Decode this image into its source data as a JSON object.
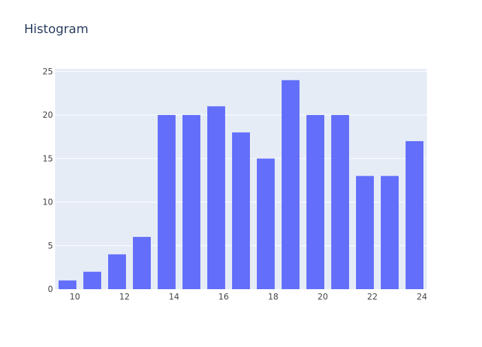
{
  "chart_data": {
    "type": "bar",
    "title": "Histogram",
    "xlabel": "",
    "ylabel": "",
    "xlim": [
      9.2,
      24.2
    ],
    "ylim": [
      0,
      25.3
    ],
    "x_ticks": [
      10,
      12,
      14,
      16,
      18,
      20,
      22,
      24
    ],
    "y_ticks": [
      0,
      5,
      10,
      15,
      20,
      25
    ],
    "bin_width": 1,
    "bar_gap": 0.28,
    "bins": [
      {
        "start": 9.2,
        "end": 10.2,
        "count": 1
      },
      {
        "start": 10.2,
        "end": 11.2,
        "count": 2
      },
      {
        "start": 11.2,
        "end": 12.2,
        "count": 4
      },
      {
        "start": 12.2,
        "end": 13.2,
        "count": 6
      },
      {
        "start": 13.2,
        "end": 14.2,
        "count": 20
      },
      {
        "start": 14.2,
        "end": 15.2,
        "count": 20
      },
      {
        "start": 15.2,
        "end": 16.2,
        "count": 21
      },
      {
        "start": 16.2,
        "end": 17.2,
        "count": 18
      },
      {
        "start": 17.2,
        "end": 18.2,
        "count": 15
      },
      {
        "start": 18.2,
        "end": 19.2,
        "count": 24
      },
      {
        "start": 19.2,
        "end": 20.2,
        "count": 20
      },
      {
        "start": 20.2,
        "end": 21.2,
        "count": 20
      },
      {
        "start": 21.2,
        "end": 22.2,
        "count": 13
      },
      {
        "start": 22.2,
        "end": 23.2,
        "count": 13
      },
      {
        "start": 23.2,
        "end": 24.2,
        "count": 17
      }
    ],
    "colors": {
      "bar": "#636efa",
      "plot_bg": "#e5ecf6",
      "grid": "#ffffff",
      "text": "#2a3f5f",
      "tick_text": "#444444"
    },
    "grid": true
  }
}
